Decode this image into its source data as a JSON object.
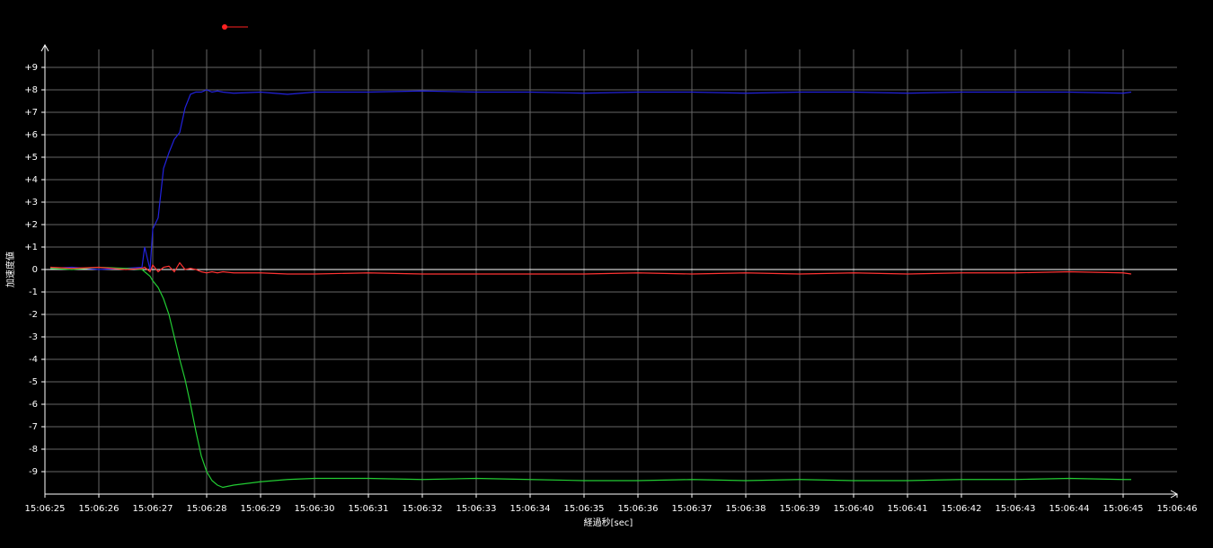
{
  "chart_data": {
    "type": "line",
    "x_label": "経過秒[sec]",
    "y_label": "加速度値",
    "xlim": [
      25,
      46
    ],
    "xticks": [
      {
        "value": 25,
        "label": "15:06:25"
      },
      {
        "value": 26,
        "label": "15:06:26"
      },
      {
        "value": 27,
        "label": "15:06:27"
      },
      {
        "value": 28,
        "label": "15:06:28"
      },
      {
        "value": 29,
        "label": "15:06:29"
      },
      {
        "value": 30,
        "label": "15:06:30"
      },
      {
        "value": 31,
        "label": "15:06:31"
      },
      {
        "value": 32,
        "label": "15:06:32"
      },
      {
        "value": 33,
        "label": "15:06:33"
      },
      {
        "value": 34,
        "label": "15:06:34"
      },
      {
        "value": 35,
        "label": "15:06:35"
      },
      {
        "value": 36,
        "label": "15:06:36"
      },
      {
        "value": 37,
        "label": "15:06:37"
      },
      {
        "value": 38,
        "label": "15:06:38"
      },
      {
        "value": 39,
        "label": "15:06:39"
      },
      {
        "value": 40,
        "label": "15:06:40"
      },
      {
        "value": 41,
        "label": "15:06:41"
      },
      {
        "value": 42,
        "label": "15:06:42"
      },
      {
        "value": 43,
        "label": "15:06:43"
      },
      {
        "value": 44,
        "label": "15:06:44"
      },
      {
        "value": 45,
        "label": "15:06:45"
      },
      {
        "value": 46,
        "label": "15:06:46"
      }
    ],
    "ylim": [
      -10,
      10
    ],
    "yticks": [
      {
        "value": 9,
        "label": "+9"
      },
      {
        "value": 8,
        "label": "+8"
      },
      {
        "value": 7,
        "label": "+7"
      },
      {
        "value": 6,
        "label": "+6"
      },
      {
        "value": 5,
        "label": "+5"
      },
      {
        "value": 4,
        "label": "+4"
      },
      {
        "value": 3,
        "label": "+3"
      },
      {
        "value": 2,
        "label": "+2"
      },
      {
        "value": 1,
        "label": "+1"
      },
      0,
      -1,
      -2,
      -3,
      -4,
      -5,
      -6,
      -7,
      -8,
      -9
    ],
    "grid": true,
    "x": [
      25.1,
      25.5,
      26,
      26.5,
      26.8,
      26.85,
      26.95,
      27.0,
      27.1,
      27.2,
      27.3,
      27.4,
      27.5,
      27.6,
      27.7,
      27.8,
      27.9,
      28.0,
      28.1,
      28.2,
      28.3,
      28.5,
      29,
      29.5,
      30,
      31,
      32,
      33,
      34,
      35,
      36,
      37,
      38,
      39,
      40,
      41,
      42,
      43,
      44,
      45,
      45.15
    ],
    "series": [
      {
        "color": "#2222dd",
        "values": [
          0.05,
          0.1,
          0.0,
          0.05,
          0.1,
          1.0,
          0.0,
          1.8,
          2.3,
          4.5,
          5.2,
          5.8,
          6.1,
          7.2,
          7.8,
          7.9,
          7.9,
          8.0,
          7.9,
          7.95,
          7.9,
          7.85,
          7.9,
          7.8,
          7.9,
          7.9,
          7.95,
          7.9,
          7.9,
          7.85,
          7.9,
          7.9,
          7.85,
          7.9,
          7.9,
          7.85,
          7.9,
          7.9,
          7.9,
          7.85,
          7.9
        ]
      },
      {
        "color": "#22cc33",
        "values": [
          0.05,
          0.0,
          0.1,
          0.05,
          0.0,
          -0.1,
          -0.3,
          -0.5,
          -0.8,
          -1.3,
          -2.0,
          -3.0,
          -4.0,
          -4.9,
          -6.0,
          -7.2,
          -8.3,
          -9.0,
          -9.4,
          -9.6,
          -9.7,
          -9.6,
          -9.45,
          -9.35,
          -9.3,
          -9.3,
          -9.35,
          -9.3,
          -9.35,
          -9.4,
          -9.4,
          -9.35,
          -9.4,
          -9.35,
          -9.4,
          -9.4,
          -9.35,
          -9.35,
          -9.3,
          -9.35,
          -9.35
        ]
      },
      {
        "color": "#ff3333",
        "values": [
          0.1,
          0.05,
          0.1,
          0.0,
          0.05,
          0.1,
          -0.1,
          0.2,
          -0.1,
          0.1,
          0.15,
          -0.1,
          0.3,
          0.0,
          0.05,
          0.0,
          -0.1,
          -0.15,
          -0.1,
          -0.15,
          -0.1,
          -0.15,
          -0.15,
          -0.2,
          -0.2,
          -0.15,
          -0.2,
          -0.2,
          -0.2,
          -0.2,
          -0.15,
          -0.2,
          -0.15,
          -0.2,
          -0.15,
          -0.2,
          -0.15,
          -0.15,
          -0.1,
          -0.15,
          -0.2
        ]
      }
    ]
  }
}
